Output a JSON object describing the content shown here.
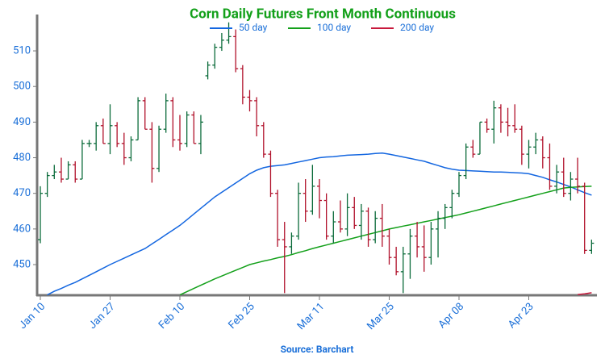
{
  "chart_data": {
    "type": "ohlc",
    "title": "Corn Daily Futures Front Month Continuous",
    "source": "Source: Barchart",
    "categories": [
      "Jan 10",
      null,
      null,
      null,
      null,
      null,
      null,
      null,
      null,
      null,
      "Jan 27",
      null,
      null,
      null,
      null,
      null,
      null,
      null,
      null,
      null,
      "Feb 10",
      null,
      null,
      null,
      null,
      null,
      null,
      null,
      null,
      null,
      "Feb 25",
      null,
      null,
      null,
      null,
      null,
      null,
      null,
      null,
      null,
      "Mar 11",
      null,
      null,
      null,
      null,
      null,
      null,
      null,
      null,
      null,
      "Mar 25",
      null,
      null,
      null,
      null,
      null,
      null,
      null,
      null,
      null,
      "Apr 08",
      null,
      null,
      null,
      null,
      null,
      null,
      null,
      null,
      null,
      "Apr 23",
      null,
      null,
      null,
      null,
      null,
      null,
      null,
      null,
      null
    ],
    "open": [
      457,
      470,
      475,
      476,
      474,
      478,
      474,
      484,
      484,
      489,
      484,
      489,
      484,
      480,
      485,
      496,
      488,
      477,
      488,
      496,
      485,
      484,
      492,
      484,
      503,
      506,
      511,
      513,
      514,
      505,
      497,
      496,
      489,
      481,
      470,
      457,
      455,
      458,
      470,
      465,
      472,
      468,
      458,
      462,
      460,
      466,
      461,
      465,
      457,
      463,
      458,
      452,
      448,
      453,
      458,
      455,
      452,
      460,
      463,
      466,
      470,
      475,
      483,
      481,
      490,
      488,
      494,
      490,
      489,
      488,
      481,
      483,
      485,
      480,
      472,
      476,
      470,
      474,
      472,
      454
    ],
    "high": [
      472,
      476,
      478,
      480,
      479,
      479,
      485,
      485,
      490,
      491,
      495,
      490,
      487,
      486,
      497,
      497,
      490,
      489,
      498,
      497,
      492,
      493,
      493,
      492,
      507,
      512,
      515,
      518,
      516,
      506,
      499,
      497,
      490,
      482,
      471,
      462,
      459,
      473,
      474,
      478,
      474,
      470,
      465,
      468,
      470,
      469,
      467,
      466,
      465,
      467,
      460,
      455,
      455,
      460,
      462,
      461,
      462,
      465,
      467,
      471,
      476,
      484,
      485,
      490,
      491,
      496,
      495,
      494,
      495,
      489,
      485,
      487,
      486,
      484,
      478,
      480,
      476,
      480,
      473,
      457
    ],
    "low": [
      456,
      469,
      474,
      473,
      474,
      473,
      474,
      483,
      482,
      484,
      481,
      483,
      478,
      479,
      485,
      488,
      473,
      476,
      487,
      483,
      482,
      483,
      484,
      481,
      502,
      505,
      510,
      512,
      504,
      495,
      493,
      486,
      480,
      469,
      455,
      442,
      453,
      457,
      462,
      464,
      463,
      457,
      456,
      459,
      458,
      460,
      457,
      455,
      456,
      455,
      450,
      447,
      442,
      446,
      452,
      448,
      450,
      452,
      460,
      463,
      469,
      474,
      480,
      481,
      487,
      484,
      487,
      486,
      487,
      478,
      477,
      481,
      477,
      471,
      470,
      469,
      468,
      470,
      453,
      453
    ],
    "close": [
      470,
      475,
      476,
      474,
      478,
      474,
      484,
      484,
      489,
      484,
      489,
      484,
      480,
      485,
      496,
      488,
      477,
      488,
      496,
      485,
      484,
      492,
      484,
      490,
      506,
      511,
      513,
      514,
      505,
      497,
      496,
      489,
      481,
      470,
      457,
      455,
      458,
      470,
      465,
      472,
      468,
      458,
      462,
      460,
      466,
      461,
      465,
      457,
      463,
      458,
      452,
      448,
      453,
      458,
      455,
      452,
      460,
      463,
      466,
      470,
      475,
      483,
      481,
      490,
      488,
      494,
      490,
      489,
      488,
      481,
      483,
      485,
      480,
      472,
      476,
      470,
      474,
      472,
      454,
      456
    ],
    "up_color": "#0b6b3a",
    "down_color": "#b0102a",
    "series": [
      {
        "name": "50 day",
        "color": "#1366e0",
        "values": [
          null,
          441.5,
          442.5,
          443.3,
          444.2,
          445,
          446,
          447,
          448,
          449,
          450,
          450.9,
          451.8,
          452.7,
          453.6,
          454.5,
          455.8,
          457.1,
          458.4,
          459.7,
          461,
          462.6,
          464.2,
          465.8,
          467.4,
          469,
          470.3,
          471.6,
          472.9,
          474.2,
          475.5,
          476.5,
          477.2,
          477.6,
          477.8,
          478,
          478.4,
          478.8,
          479.2,
          479.6,
          480,
          480.2,
          480.3,
          480.5,
          480.7,
          480.8,
          480.9,
          481,
          481.2,
          481.3,
          481,
          480.6,
          480.2,
          479.8,
          479.4,
          479,
          478.4,
          477.8,
          477.2,
          476.8,
          476.5,
          476.4,
          476.3,
          476.2,
          476.1,
          476,
          476,
          475.9,
          475.8,
          475.7,
          475.5,
          475,
          474.5,
          473.8,
          473.2,
          472.5,
          471.8,
          471,
          470.2,
          469.5
        ]
      },
      {
        "name": "100 day",
        "color": "#13a01a",
        "values": [
          null,
          null,
          null,
          null,
          null,
          null,
          null,
          null,
          null,
          null,
          null,
          null,
          null,
          null,
          null,
          null,
          null,
          null,
          null,
          null,
          441.5,
          442.4,
          443.3,
          444.2,
          445.1,
          446,
          446.8,
          447.6,
          448.4,
          449.2,
          450,
          450.5,
          451,
          451.4,
          451.9,
          452.3,
          452.8,
          453.4,
          453.9,
          454.5,
          455,
          455.5,
          456,
          456.5,
          457,
          457.5,
          458,
          458.5,
          459,
          459.5,
          460,
          460.4,
          460.8,
          461.2,
          461.6,
          462,
          462.4,
          462.8,
          463.2,
          463.6,
          464,
          464.5,
          465,
          465.5,
          466,
          466.5,
          467,
          467.5,
          468,
          468.5,
          469,
          469.5,
          470,
          470.5,
          471,
          471.5,
          471.7,
          471.8,
          471.9,
          472
        ]
      },
      {
        "name": "200 day",
        "color": "#c8193c",
        "values": [
          null,
          null,
          null,
          null,
          null,
          null,
          null,
          null,
          null,
          null,
          null,
          null,
          null,
          null,
          null,
          null,
          null,
          null,
          null,
          null,
          null,
          null,
          null,
          null,
          null,
          null,
          null,
          null,
          null,
          null,
          null,
          null,
          null,
          null,
          null,
          null,
          null,
          null,
          null,
          null,
          null,
          null,
          null,
          null,
          null,
          null,
          null,
          null,
          null,
          null,
          null,
          null,
          null,
          null,
          null,
          null,
          null,
          null,
          null,
          null,
          null,
          null,
          null,
          null,
          null,
          null,
          null,
          null,
          null,
          null,
          null,
          null,
          null,
          null,
          null,
          null,
          null,
          441.6,
          441.8,
          442.1
        ]
      }
    ],
    "ylim": [
      441.4,
      520.2
    ],
    "yticks": [
      450,
      460,
      470,
      480,
      490,
      500,
      510
    ],
    "grid": false,
    "title_color": "#13a01a"
  }
}
